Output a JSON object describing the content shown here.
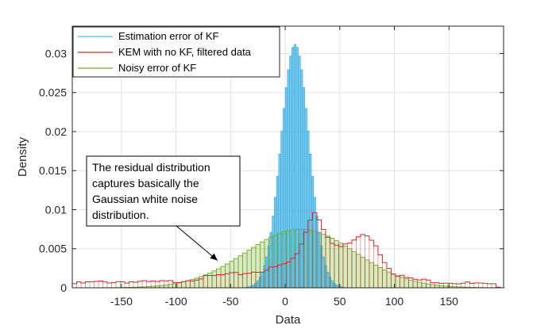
{
  "chart_data": {
    "type": "histogram",
    "xlabel": "Data",
    "ylabel": "Density",
    "xlim": [
      -195,
      200
    ],
    "ylim": [
      0,
      0.0335
    ],
    "xticks": [
      -150,
      -100,
      -50,
      0,
      50,
      100,
      150
    ],
    "xtick_labels": [
      "-150",
      "-100",
      "-50",
      "0",
      "50",
      "100",
      "150"
    ],
    "yticks": [
      0,
      0.005,
      0.01,
      0.015,
      0.02,
      0.025,
      0.03
    ],
    "ytick_labels": [
      "0",
      "0.005",
      "0.01",
      "0.015",
      "0.02",
      "0.025",
      "0.03"
    ],
    "grid": true,
    "legend_position": "top-left",
    "legend": [
      {
        "label": "Estimation error of KF",
        "color": "#4dbeee"
      },
      {
        "label": "KEM with no KF, filtered data",
        "color": "#d62728"
      },
      {
        "label": "Noisy error of KF",
        "color": "#77ac30"
      }
    ],
    "series": [
      {
        "name": "Estimation error of KF",
        "style": "filled-bars",
        "color": "#4dbeee",
        "bin_width": 2,
        "distribution": "normal",
        "mean": 9,
        "std": 12.8,
        "x_range": [
          -40,
          60
        ]
      },
      {
        "name": "KEM with no KF, filtered data",
        "style": "stairs",
        "color": "#d62728",
        "bin_width": 4,
        "points": [
          [
            -195,
            0.0005
          ],
          [
            -175,
            0.0007
          ],
          [
            -150,
            0.0008
          ],
          [
            -125,
            0.0007
          ],
          [
            -100,
            0.0008
          ],
          [
            -80,
            0.0012
          ],
          [
            -60,
            0.0016
          ],
          [
            -40,
            0.0018
          ],
          [
            -20,
            0.0022
          ],
          [
            -5,
            0.0028
          ],
          [
            5,
            0.0034
          ],
          [
            12,
            0.0045
          ],
          [
            18,
            0.0068
          ],
          [
            24,
            0.0092
          ],
          [
            28,
            0.0098
          ],
          [
            32,
            0.0085
          ],
          [
            38,
            0.0068
          ],
          [
            45,
            0.0055
          ],
          [
            52,
            0.0052
          ],
          [
            60,
            0.0058
          ],
          [
            68,
            0.0066
          ],
          [
            75,
            0.0068
          ],
          [
            82,
            0.0058
          ],
          [
            90,
            0.0035
          ],
          [
            100,
            0.0018
          ],
          [
            115,
            0.0011
          ],
          [
            130,
            0.0009
          ],
          [
            150,
            0.0007
          ],
          [
            175,
            0.0005
          ],
          [
            200,
            0.0002
          ]
        ]
      },
      {
        "name": "Noisy error of KF",
        "style": "stairs-filled",
        "color": "#77ac30",
        "bin_width": 4,
        "distribution": "normal",
        "mean": 14,
        "std": 50,
        "peak": 0.0075,
        "x_range": [
          -195,
          200
        ]
      }
    ],
    "annotation": {
      "lines": [
        "The residual distribution",
        "captures basically the",
        "Gaussian white noise",
        "distribution."
      ],
      "arrow_target": [
        -62,
        0.0035
      ]
    }
  }
}
